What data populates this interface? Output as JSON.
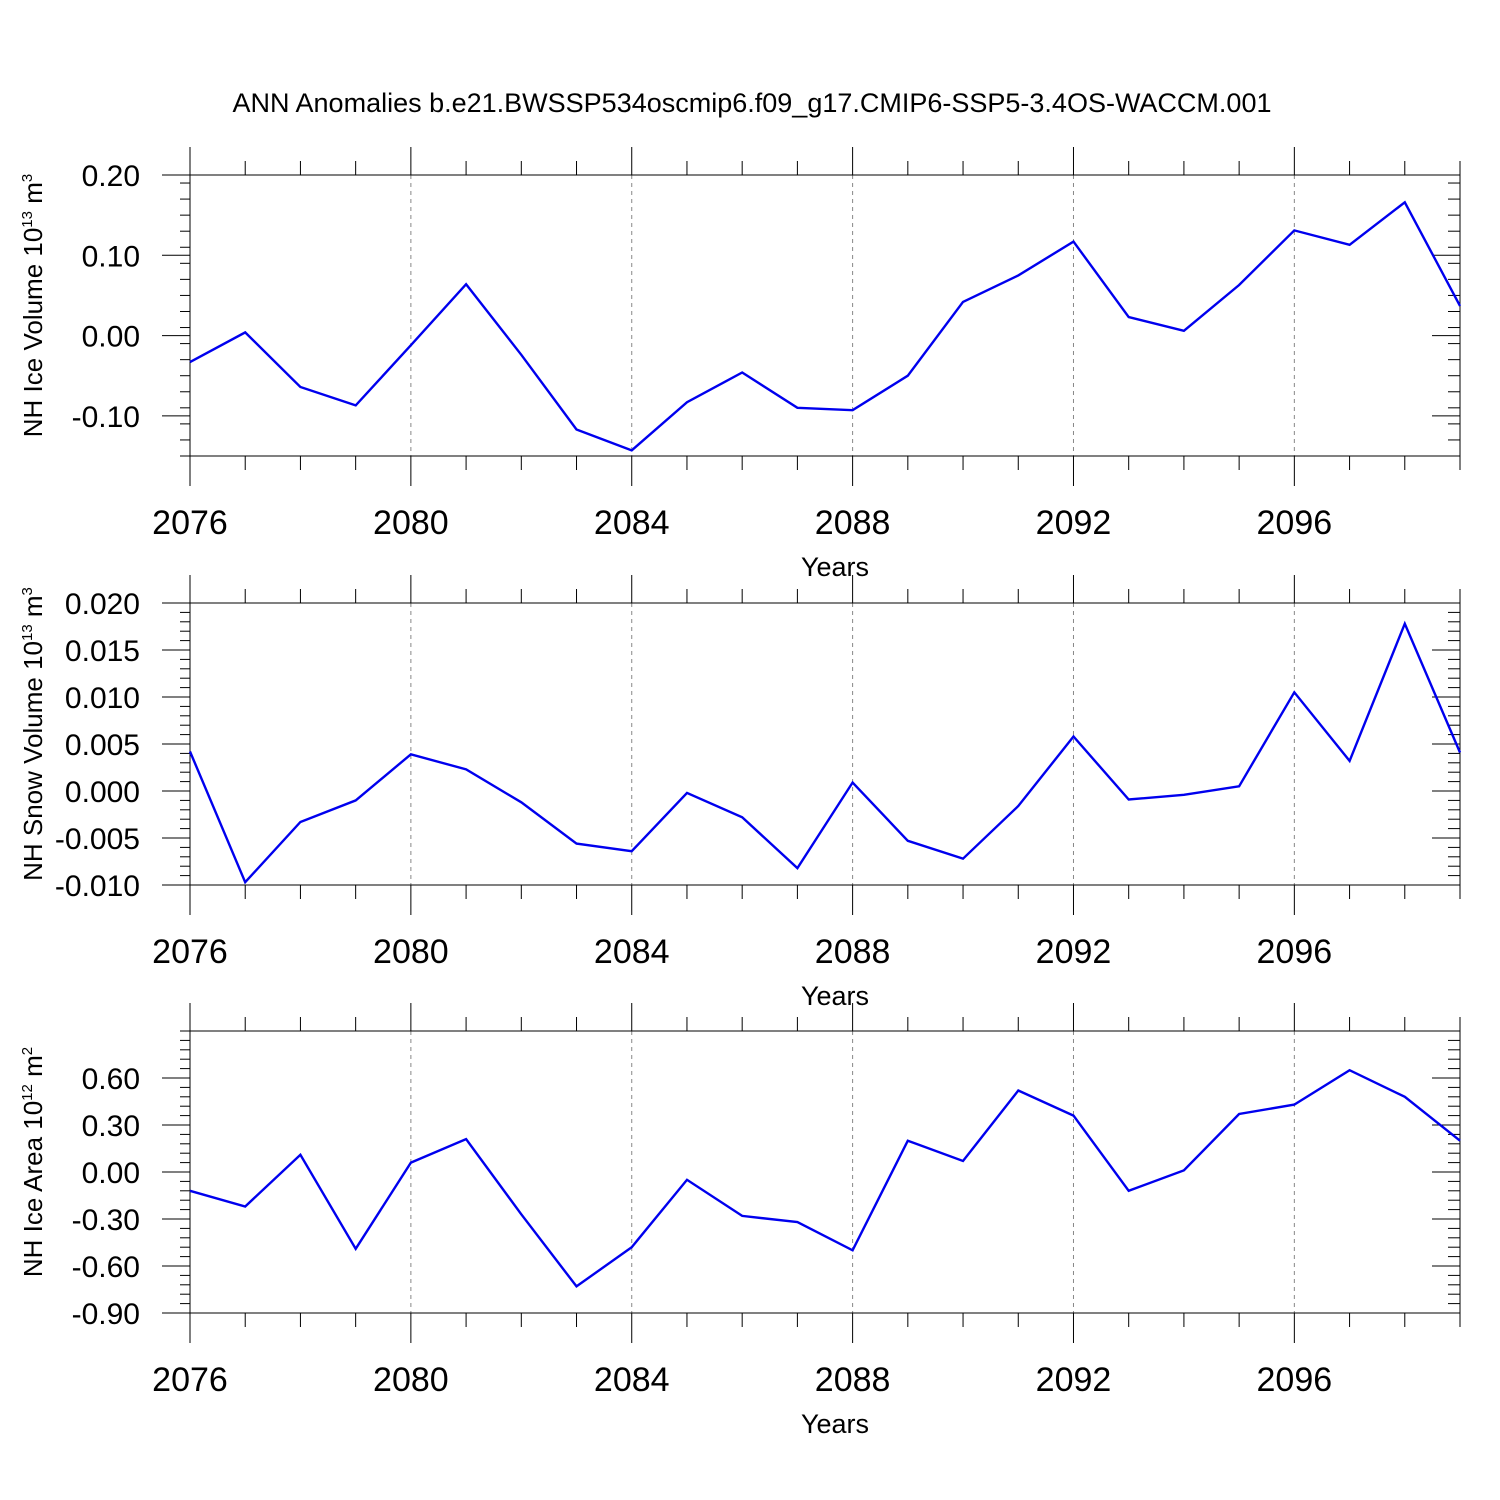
{
  "title": "ANN Anomalies b.e21.BWSSP534oscmip6.f09_g17.CMIP6-SSP5-3.4OS-WACCM.001",
  "colors": {
    "line": "#0000ee",
    "axis": "#000000",
    "grid": "#888888"
  },
  "chart_data": [
    {
      "type": "line",
      "id": "ice-volume",
      "xlabel": "Years",
      "ylabel": {
        "text": "NH Ice Volume 10",
        "sup": "13",
        "unit": "m",
        "unit_sup": "3"
      },
      "xlim": [
        2076,
        2099
      ],
      "ylim": [
        -0.15,
        0.2
      ],
      "xticks": [
        2076,
        2080,
        2084,
        2088,
        2092,
        2096
      ],
      "xtick_labels": [
        "2076",
        "2080",
        "2084",
        "2088",
        "2092",
        "2096"
      ],
      "yticks": [
        -0.1,
        0.0,
        0.1,
        0.2
      ],
      "ytick_labels": [
        "-0.10",
        "0.00",
        "0.10",
        "0.20"
      ],
      "y_minor_step": 0.02,
      "series": [
        {
          "name": "NH Ice Volume",
          "x": [
            2076,
            2077,
            2078,
            2079,
            2080,
            2081,
            2082,
            2083,
            2084,
            2085,
            2086,
            2087,
            2088,
            2089,
            2090,
            2091,
            2092,
            2093,
            2094,
            2095,
            2096,
            2097,
            2098,
            2099
          ],
          "y": [
            -0.033,
            0.004,
            -0.064,
            -0.087,
            -0.012,
            0.064,
            -0.024,
            -0.117,
            -0.143,
            -0.083,
            -0.046,
            -0.09,
            -0.093,
            -0.05,
            0.042,
            0.075,
            0.117,
            0.023,
            0.006,
            0.063,
            0.131,
            0.113,
            0.166,
            0.037
          ]
        }
      ]
    },
    {
      "type": "line",
      "id": "snow-volume",
      "xlabel": "Years",
      "ylabel": {
        "text": "NH Snow Volume 10",
        "sup": "13",
        "unit": "m",
        "unit_sup": "3"
      },
      "xlim": [
        2076,
        2099
      ],
      "ylim": [
        -0.01,
        0.02
      ],
      "xticks": [
        2076,
        2080,
        2084,
        2088,
        2092,
        2096
      ],
      "xtick_labels": [
        "2076",
        "2080",
        "2084",
        "2088",
        "2092",
        "2096"
      ],
      "yticks": [
        -0.01,
        -0.005,
        0.0,
        0.005,
        0.01,
        0.015,
        0.02
      ],
      "ytick_labels": [
        "-0.010",
        "-0.005",
        "0.000",
        "0.005",
        "0.010",
        "0.015",
        "0.020"
      ],
      "y_minor_step": 0.001,
      "series": [
        {
          "name": "NH Snow Volume",
          "x": [
            2076,
            2077,
            2078,
            2079,
            2080,
            2081,
            2082,
            2083,
            2084,
            2085,
            2086,
            2087,
            2088,
            2089,
            2090,
            2091,
            2092,
            2093,
            2094,
            2095,
            2096,
            2097,
            2098,
            2099
          ],
          "y": [
            0.0042,
            -0.0097,
            -0.0033,
            -0.001,
            0.0039,
            0.0023,
            -0.0012,
            -0.0056,
            -0.0064,
            -0.0002,
            -0.0028,
            -0.0082,
            0.0009,
            -0.0053,
            -0.0072,
            -0.0016,
            0.0058,
            -0.0009,
            -0.0004,
            0.0005,
            0.0105,
            0.0032,
            0.0178,
            0.0041
          ]
        }
      ]
    },
    {
      "type": "line",
      "id": "ice-area",
      "xlabel": "Years",
      "ylabel": {
        "text": "NH Ice Area 10",
        "sup": "12",
        "unit": "m",
        "unit_sup": "2"
      },
      "xlim": [
        2076,
        2099
      ],
      "ylim": [
        -0.9,
        0.9
      ],
      "xticks": [
        2076,
        2080,
        2084,
        2088,
        2092,
        2096
      ],
      "xtick_labels": [
        "2076",
        "2080",
        "2084",
        "2088",
        "2092",
        "2096"
      ],
      "yticks": [
        -0.9,
        -0.6,
        -0.3,
        0.0,
        0.3,
        0.6
      ],
      "ytick_labels": [
        "-0.90",
        "-0.60",
        "-0.30",
        "0.00",
        "0.30",
        "0.60"
      ],
      "y_minor_step": 0.06,
      "series": [
        {
          "name": "NH Ice Area",
          "x": [
            2076,
            2077,
            2078,
            2079,
            2080,
            2081,
            2082,
            2083,
            2084,
            2085,
            2086,
            2087,
            2088,
            2089,
            2090,
            2091,
            2092,
            2093,
            2094,
            2095,
            2096,
            2097,
            2098,
            2099
          ],
          "y": [
            -0.12,
            -0.22,
            0.11,
            -0.49,
            0.06,
            0.21,
            -0.27,
            -0.73,
            -0.48,
            -0.05,
            -0.28,
            -0.32,
            -0.5,
            0.2,
            0.07,
            0.52,
            0.36,
            -0.12,
            0.01,
            0.37,
            0.43,
            0.65,
            0.48,
            0.2
          ]
        }
      ]
    }
  ]
}
